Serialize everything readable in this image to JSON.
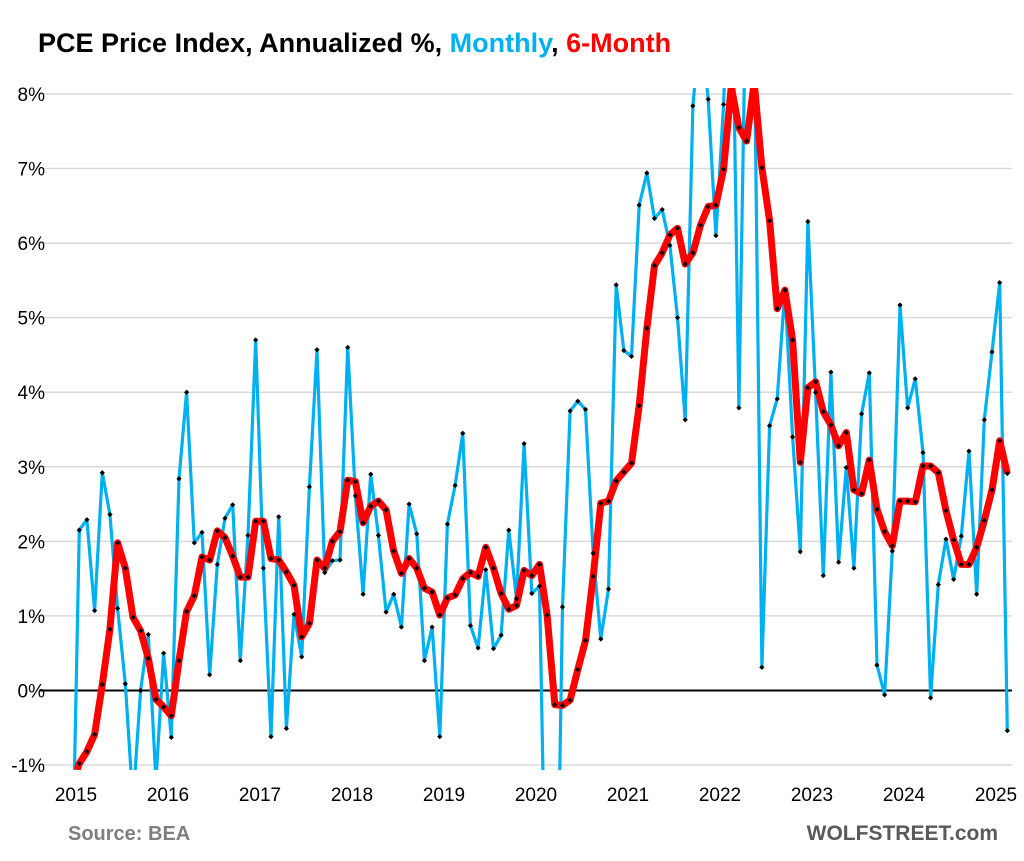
{
  "chart_data": {
    "type": "line",
    "title": {
      "prefix": "PCE Price Index, Annualized %, ",
      "series1": "Monthly",
      "separator": ", ",
      "series2": "6-Month"
    },
    "x_start": "2015-01",
    "frequency": "monthly",
    "xtick_labels": [
      "2015",
      "2016",
      "2017",
      "2018",
      "2019",
      "2020",
      "2021",
      "2022",
      "2023",
      "2024",
      "2025"
    ],
    "ytick_labels": [
      "-1%",
      "0%",
      "1%",
      "2%",
      "3%",
      "4%",
      "5%",
      "6%",
      "7%",
      "8%"
    ],
    "ylim": [
      -1,
      8
    ],
    "grid": true,
    "series": [
      {
        "name": "Monthly",
        "color": "#00B0F0",
        "values": [
          -3.0,
          2.15,
          2.29,
          1.07,
          2.92,
          2.36,
          1.1,
          0.09,
          -1.5,
          0.0,
          0.75,
          -1.2,
          0.5,
          -0.63,
          2.84,
          4.0,
          1.98,
          2.12,
          0.21,
          1.69,
          2.31,
          2.49,
          0.4,
          2.08,
          4.7,
          1.64,
          -0.62,
          2.33,
          -0.51,
          1.02,
          0.45,
          2.73,
          4.57,
          1.58,
          1.74,
          1.75,
          4.6,
          2.61,
          1.29,
          2.9,
          2.08,
          1.05,
          1.29,
          0.85,
          2.5,
          2.1,
          0.4,
          0.85,
          -0.62,
          2.23,
          2.75,
          3.45,
          0.87,
          0.57,
          1.62,
          0.56,
          0.74,
          2.15,
          1.23,
          3.31,
          1.3,
          1.4,
          -4.1,
          -5.2,
          1.12,
          3.75,
          3.88,
          3.77,
          1.84,
          0.69,
          1.36,
          5.44,
          4.56,
          4.48,
          6.51,
          6.94,
          6.33,
          6.45,
          5.97,
          5.0,
          3.63,
          7.84,
          9.0,
          7.93,
          6.1,
          7.86,
          10.5,
          3.79,
          10.0,
          8.8,
          0.31,
          3.55,
          3.91,
          5.37,
          3.4,
          1.86,
          6.29,
          4.0,
          1.54,
          4.27,
          1.72,
          2.99,
          1.64,
          3.71,
          4.26,
          0.34,
          -0.06,
          1.87,
          5.17,
          3.79,
          4.18,
          3.19,
          -0.1,
          1.42,
          2.03,
          1.49,
          2.07,
          3.21,
          1.29,
          3.63,
          4.54,
          5.47,
          -0.54
        ]
      },
      {
        "name": "6-Month",
        "color": "#FF0000",
        "values": [
          -1.3,
          -0.98,
          -0.82,
          -0.59,
          0.08,
          0.82,
          1.98,
          1.64,
          0.98,
          0.8,
          0.43,
          -0.12,
          -0.22,
          -0.34,
          0.4,
          1.06,
          1.27,
          1.79,
          1.75,
          2.14,
          2.05,
          1.8,
          1.52,
          1.52,
          2.27,
          2.27,
          1.77,
          1.75,
          1.59,
          1.41,
          0.72,
          0.9,
          1.75,
          1.64,
          2.0,
          2.13,
          2.82,
          2.8,
          2.25,
          2.47,
          2.54,
          2.42,
          1.87,
          1.57,
          1.77,
          1.64,
          1.37,
          1.32,
          1.01,
          1.24,
          1.28,
          1.5,
          1.58,
          1.53,
          1.92,
          1.64,
          1.3,
          1.09,
          1.14,
          1.61,
          1.54,
          1.69,
          1.01,
          -0.19,
          -0.2,
          -0.13,
          0.28,
          0.67,
          1.53,
          2.51,
          2.54,
          2.81,
          2.93,
          3.05,
          3.82,
          4.86,
          5.7,
          5.87,
          6.11,
          6.2,
          5.72,
          5.87,
          6.24,
          6.49,
          6.51,
          6.99,
          8.1,
          7.55,
          7.37,
          8.15,
          7.01,
          6.3,
          5.12,
          5.37,
          4.7,
          3.06,
          4.06,
          4.14,
          3.74,
          3.56,
          3.28,
          3.46,
          2.69,
          2.64,
          3.09,
          2.43,
          2.13,
          1.94,
          2.54,
          2.54,
          2.53,
          3.01,
          3.01,
          2.92,
          2.41,
          2.02,
          1.69,
          1.69,
          1.92,
          2.28,
          2.69,
          3.35,
          2.91
        ]
      }
    ],
    "source": "Source: BEA",
    "watermark": "WOLFSTREET.com"
  }
}
